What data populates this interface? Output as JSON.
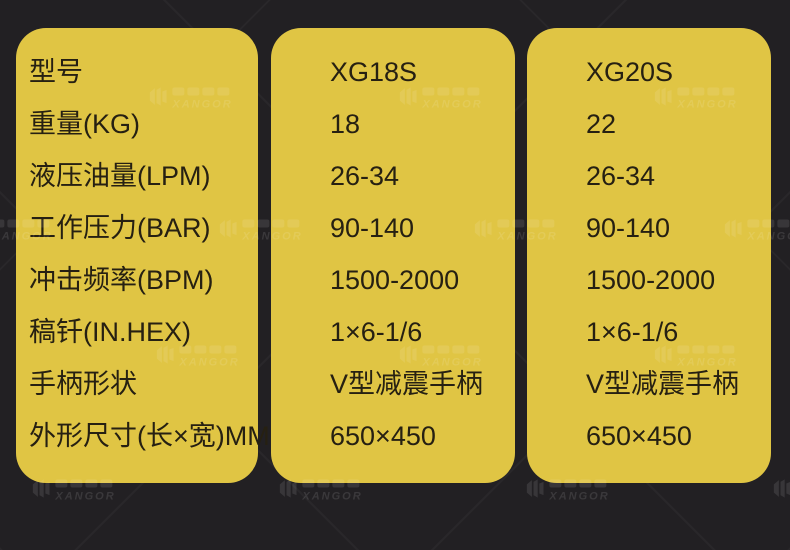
{
  "colors": {
    "background": "#222023",
    "panel_yellow": "#e0c544",
    "table_text": "#262012"
  },
  "watermark": {
    "brand": "XANGOR"
  },
  "chart_data": {
    "type": "table",
    "row_labels": [
      "型号",
      "重量(KG)",
      "液压油量(LPM)",
      "工作压力(BAR)",
      "冲击频率(BPM)",
      "稿钎(IN.HEX)",
      "手柄形状",
      "外形尺寸(长×宽)MM"
    ],
    "columns": [
      {
        "name": "XG18S",
        "values": [
          "XG18S",
          "18",
          "26-34",
          "90-140",
          "1500-2000",
          "1×6-1/6",
          "V型减震手柄",
          "650×450"
        ]
      },
      {
        "name": "XG20S",
        "values": [
          "XG20S",
          "22",
          "26-34",
          "90-140",
          "1500-2000",
          "1×6-1/6",
          "V型减震手柄",
          "650×450"
        ]
      }
    ]
  }
}
